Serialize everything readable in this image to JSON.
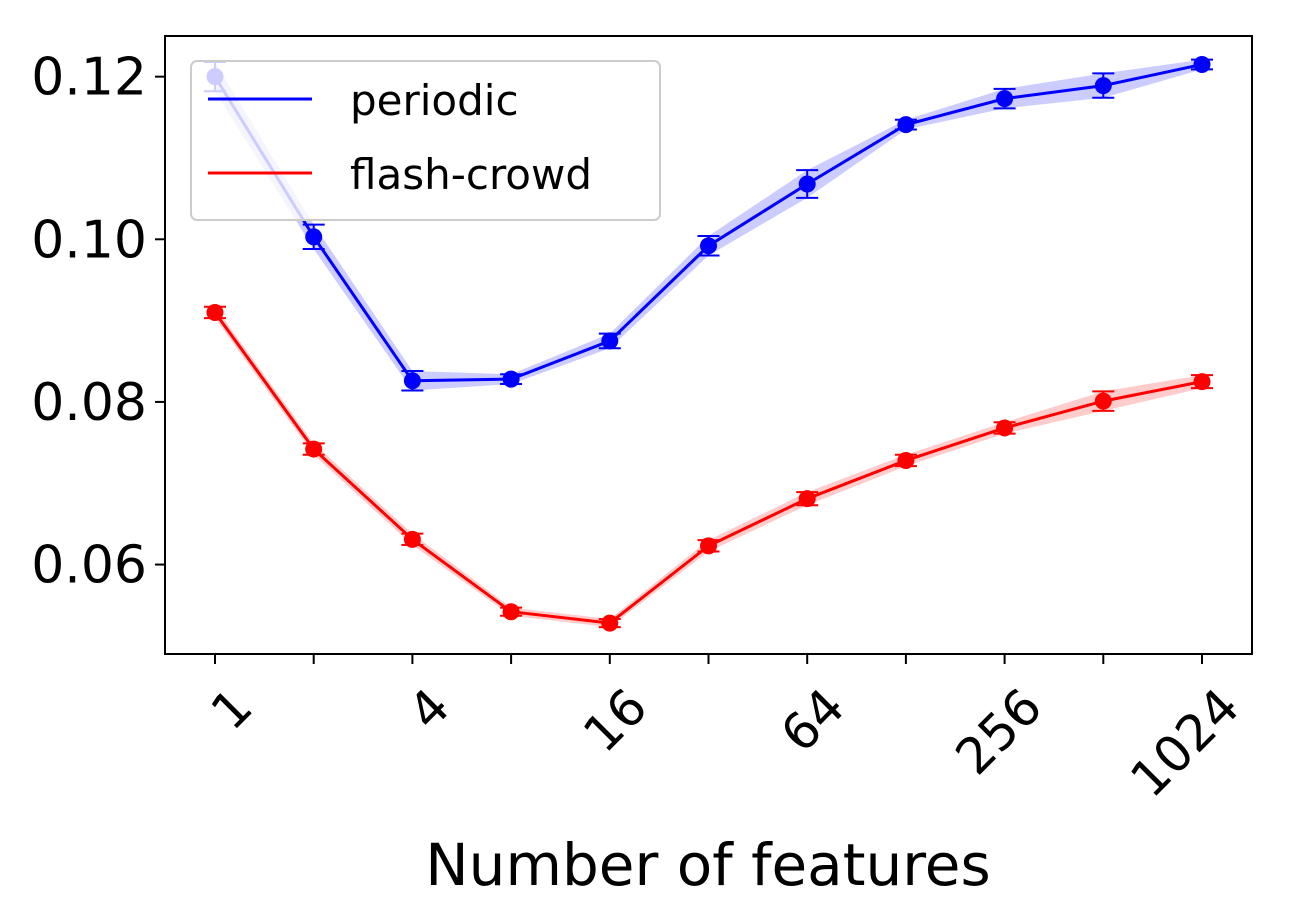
{
  "chart_data": {
    "type": "line",
    "xlabel": "Number of features",
    "ylabel": "",
    "x_scale": "log2",
    "x": [
      1,
      2,
      4,
      8,
      16,
      32,
      64,
      128,
      256,
      512,
      1024
    ],
    "xtick_labels": [
      "1",
      "",
      "4",
      "",
      "16",
      "",
      "64",
      "",
      "256",
      "",
      "1024"
    ],
    "ylim": [
      0.049,
      0.125
    ],
    "ytick_labels": [
      "0.06",
      "0.08",
      "0.10",
      "0.12"
    ],
    "ytick_values": [
      0.06,
      0.08,
      0.1,
      0.12
    ],
    "legend_position": "upper-left",
    "series": [
      {
        "name": "periodic",
        "color": "#0000ff",
        "values": [
          0.12,
          0.1003,
          0.0826,
          0.0828,
          0.0875,
          0.0992,
          0.1068,
          0.1141,
          0.1173,
          0.1189,
          0.1215
        ],
        "errors": [
          0.0018,
          0.0015,
          0.0012,
          0.0006,
          0.0009,
          0.0012,
          0.0017,
          0.0006,
          0.0012,
          0.0015,
          0.0006
        ]
      },
      {
        "name": "flash-crowd",
        "color": "#ff0000",
        "values": [
          0.091,
          0.0742,
          0.0631,
          0.0542,
          0.0528,
          0.0623,
          0.0681,
          0.0728,
          0.0768,
          0.0801,
          0.0825
        ],
        "errors": [
          0.0007,
          0.0007,
          0.0007,
          0.0005,
          0.0005,
          0.0007,
          0.0008,
          0.0007,
          0.0007,
          0.0012,
          0.0008
        ]
      }
    ]
  }
}
